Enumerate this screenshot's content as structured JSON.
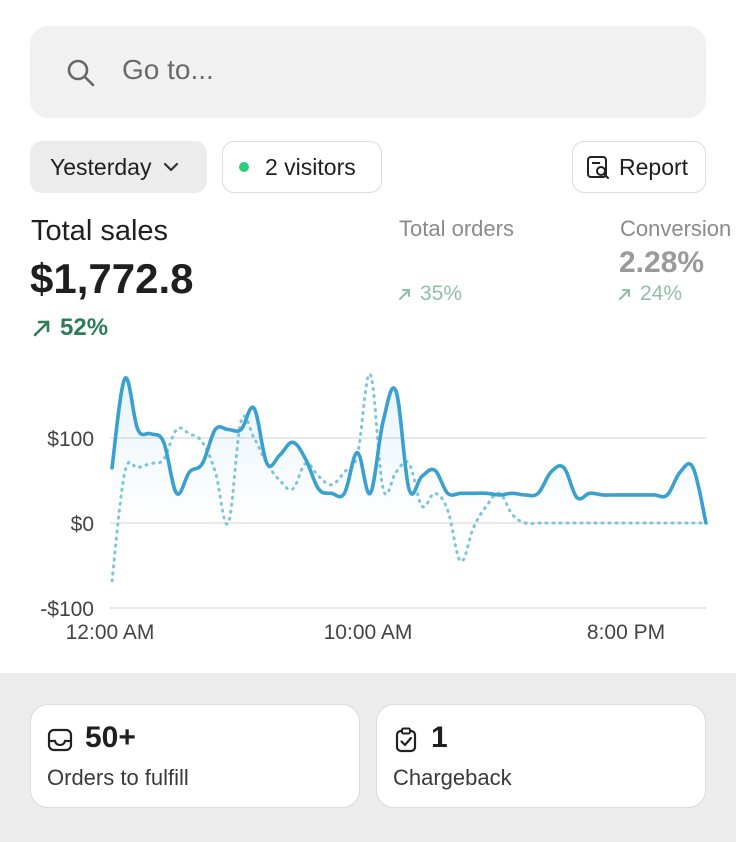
{
  "search": {
    "placeholder": "Go to..."
  },
  "filters": {
    "date_label": "Yesterday",
    "visitors_label": "2 visitors",
    "report_label": "Report"
  },
  "metrics": {
    "total_sales": {
      "label": "Total sales",
      "value": "$1,772.8",
      "change": "52%"
    },
    "total_orders": {
      "label": "Total orders",
      "change": "35%"
    },
    "conversion": {
      "label": "Conversion",
      "value": "2.28%",
      "change": "24%"
    }
  },
  "chart_data": {
    "type": "line",
    "y_tick_labels": [
      "$100",
      "$0",
      "-$100"
    ],
    "x_tick_labels": [
      "12:00 AM",
      "10:00 AM",
      "8:00 PM"
    ],
    "ylim": [
      -100,
      200
    ],
    "grid": true,
    "series": [
      {
        "style": "solid",
        "x": [
          0,
          0.5,
          1,
          1.5,
          2,
          2.5,
          3,
          3.5,
          4,
          4.5,
          5,
          5.5,
          6,
          6.5,
          7,
          7.5,
          8,
          8.5,
          9,
          9.5,
          10,
          10.5,
          11,
          11.5,
          12,
          12.5,
          13,
          13.5,
          14,
          14.5,
          15,
          15.5,
          16,
          16.5,
          17,
          17.5,
          18,
          18.5,
          19,
          19.5,
          20,
          20.5,
          21,
          21.5,
          22,
          22.5,
          23
        ],
        "values": [
          65,
          170,
          110,
          105,
          95,
          35,
          60,
          70,
          110,
          110,
          110,
          135,
          70,
          80,
          95,
          75,
          40,
          35,
          35,
          83,
          35,
          120,
          155,
          40,
          55,
          62,
          35,
          35,
          35,
          35,
          33,
          35,
          33,
          35,
          60,
          65,
          30,
          35,
          33,
          33,
          33,
          33,
          33,
          33,
          60,
          65,
          0
        ]
      },
      {
        "style": "dotted",
        "x": [
          0,
          0.5,
          1,
          1.5,
          2,
          2.5,
          3,
          3.5,
          4,
          4.5,
          5,
          5.5,
          6,
          6.5,
          7,
          7.5,
          8,
          8.5,
          9,
          9.5,
          10,
          10.5,
          11,
          11.5,
          12,
          12.5,
          13,
          13.5,
          14,
          14.5,
          15,
          15.5,
          16,
          16.5,
          17,
          17.5,
          18,
          18.5,
          19,
          19.5,
          20,
          20.5,
          21,
          21.5,
          22,
          22.5,
          23
        ],
        "values": [
          -68,
          60,
          65,
          70,
          75,
          110,
          105,
          95,
          60,
          0,
          120,
          100,
          70,
          50,
          40,
          70,
          55,
          45,
          60,
          80,
          175,
          40,
          60,
          70,
          20,
          35,
          15,
          -45,
          -5,
          20,
          35,
          10,
          0,
          0,
          0,
          0,
          0,
          0,
          0,
          0,
          0,
          0,
          0,
          0,
          0,
          0,
          0
        ]
      }
    ]
  },
  "cards": [
    {
      "value": "50+",
      "label": "Orders to fulfill"
    },
    {
      "value": "1",
      "label": "Chargeback"
    }
  ],
  "colors": {
    "line": "#3aa0d0",
    "dotted": "#7cc4df",
    "positive": "#2d7d55",
    "positive_faded": "#8fbfa7"
  }
}
